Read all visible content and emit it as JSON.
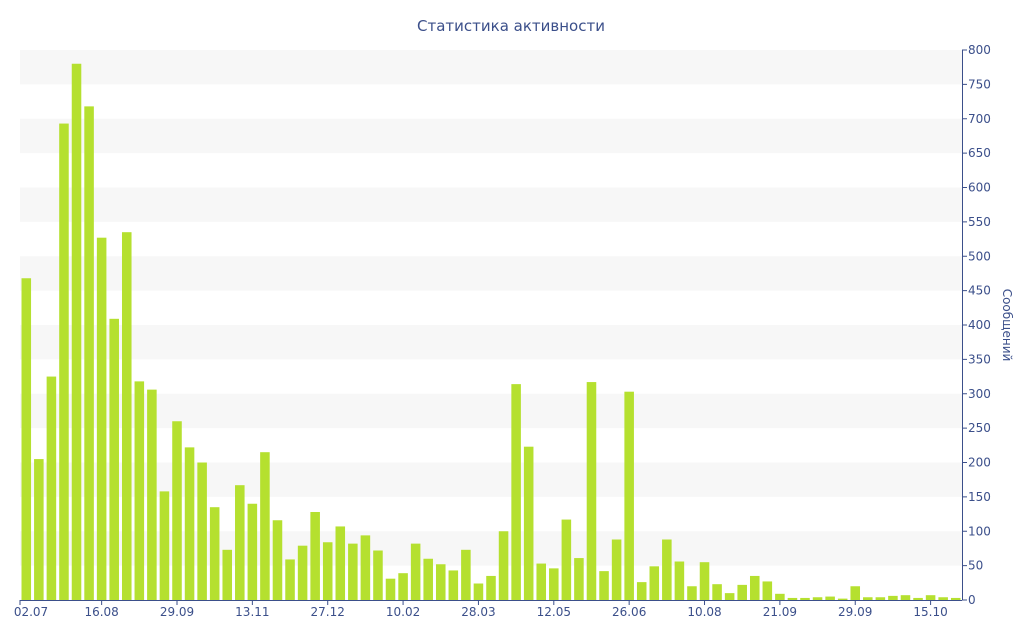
{
  "chart_data": {
    "type": "bar",
    "title": "Статистика активности",
    "xlabel": "",
    "ylabel": "Сообщений",
    "ylim": [
      0,
      800
    ],
    "y_ticks": [
      0,
      50,
      100,
      150,
      200,
      250,
      300,
      350,
      400,
      450,
      500,
      550,
      600,
      650,
      700,
      750,
      800
    ],
    "x_tick_labels": [
      {
        "label": "02.07",
        "index": 0
      },
      {
        "label": "16.08",
        "index": 6
      },
      {
        "label": "29.09",
        "index": 12
      },
      {
        "label": "13.11",
        "index": 18
      },
      {
        "label": "27.12",
        "index": 24
      },
      {
        "label": "10.02",
        "index": 30
      },
      {
        "label": "28.03",
        "index": 36
      },
      {
        "label": "12.05",
        "index": 42
      },
      {
        "label": "26.06",
        "index": 48
      },
      {
        "label": "10.08",
        "index": 54
      },
      {
        "label": "21.09",
        "index": 60
      },
      {
        "label": "29.09",
        "index": 66
      },
      {
        "label": "15.10",
        "index": 72
      }
    ],
    "values": [
      468,
      205,
      325,
      693,
      780,
      718,
      527,
      409,
      535,
      318,
      306,
      158,
      260,
      222,
      200,
      135,
      73,
      167,
      140,
      215,
      116,
      59,
      79,
      128,
      84,
      107,
      82,
      94,
      72,
      31,
      39,
      82,
      60,
      52,
      43,
      73,
      24,
      35,
      100,
      314,
      223,
      53,
      46,
      117,
      61,
      317,
      42,
      88,
      303,
      26,
      49,
      88,
      56,
      20,
      55,
      23,
      10,
      22,
      35,
      27,
      9,
      3,
      3,
      4,
      5,
      2,
      20,
      4,
      4,
      6,
      7,
      3,
      7,
      4,
      3
    ],
    "bar_color": "#b5e02f",
    "grid": "alternating horizontal bands",
    "band_color": "#f7f7f7",
    "axis_color": "#3b4f8a",
    "y_axis_side": "right"
  }
}
